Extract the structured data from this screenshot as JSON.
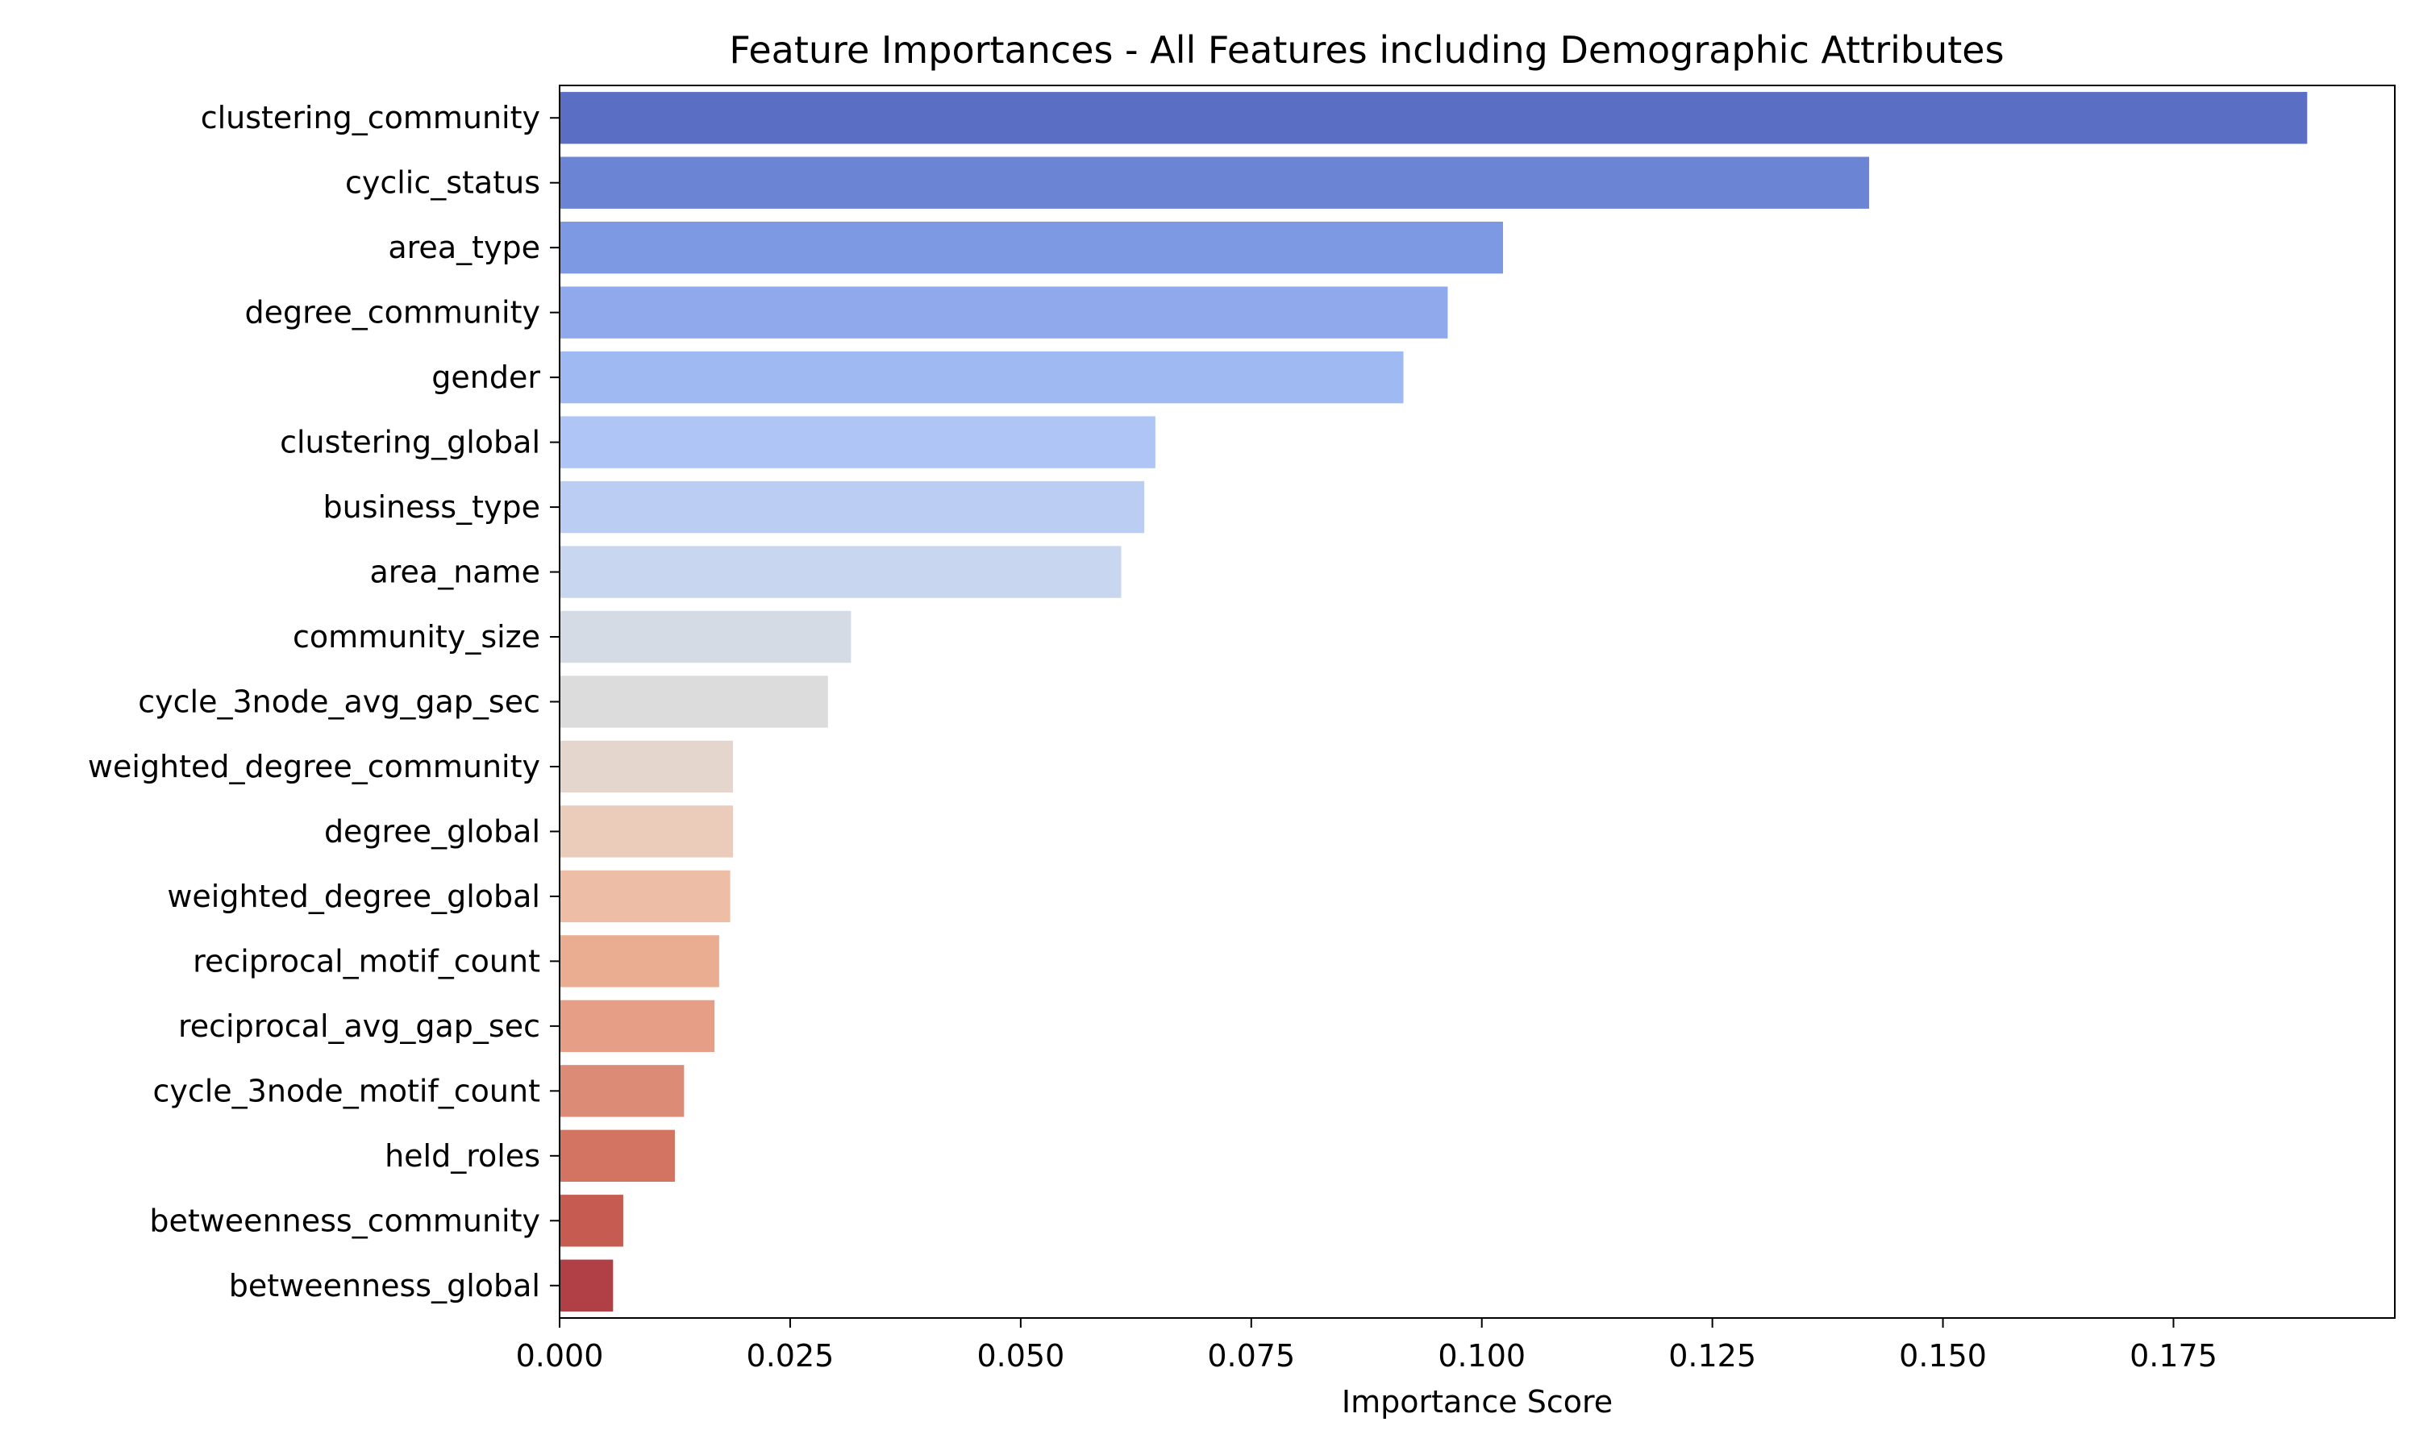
{
  "chart_data": {
    "type": "bar",
    "orientation": "horizontal",
    "title": "Feature Importances - All Features including Demographic Attributes",
    "xlabel": "Importance Score",
    "ylabel": "",
    "xlim": [
      0,
      0.199
    ],
    "xticks": [
      "0.000",
      "0.025",
      "0.050",
      "0.075",
      "0.100",
      "0.125",
      "0.150",
      "0.175"
    ],
    "grid": false,
    "legend": false,
    "colormap": "coolwarm",
    "categories": [
      "clustering_community",
      "cyclic_status",
      "area_type",
      "degree_community",
      "gender",
      "clustering_global",
      "business_type",
      "area_name",
      "community_size",
      "cycle_3node_avg_gap_sec",
      "weighted_degree_community",
      "degree_global",
      "weighted_degree_global",
      "reciprocal_motif_count",
      "reciprocal_avg_gap_sec",
      "cycle_3node_motif_count",
      "held_roles",
      "betweenness_community",
      "betweenness_global"
    ],
    "values": [
      0.1895,
      0.142,
      0.1023,
      0.0963,
      0.0915,
      0.0646,
      0.0634,
      0.0609,
      0.0316,
      0.0291,
      0.0188,
      0.0188,
      0.0185,
      0.0173,
      0.0168,
      0.0135,
      0.0125,
      0.0069,
      0.0058
    ],
    "colors": [
      "#5a6fc3",
      "#6c84d4",
      "#7d99e3",
      "#8fa9ec",
      "#9fb9f3",
      "#aec5f5",
      "#bccdf3",
      "#c8d6ef",
      "#d5dbe5",
      "#dcdcdc",
      "#e5d6cd",
      "#ebcbb9",
      "#edbda6",
      "#ebad92",
      "#e69f86",
      "#dc8c76",
      "#d37463",
      "#c65c51",
      "#b13f46"
    ]
  }
}
